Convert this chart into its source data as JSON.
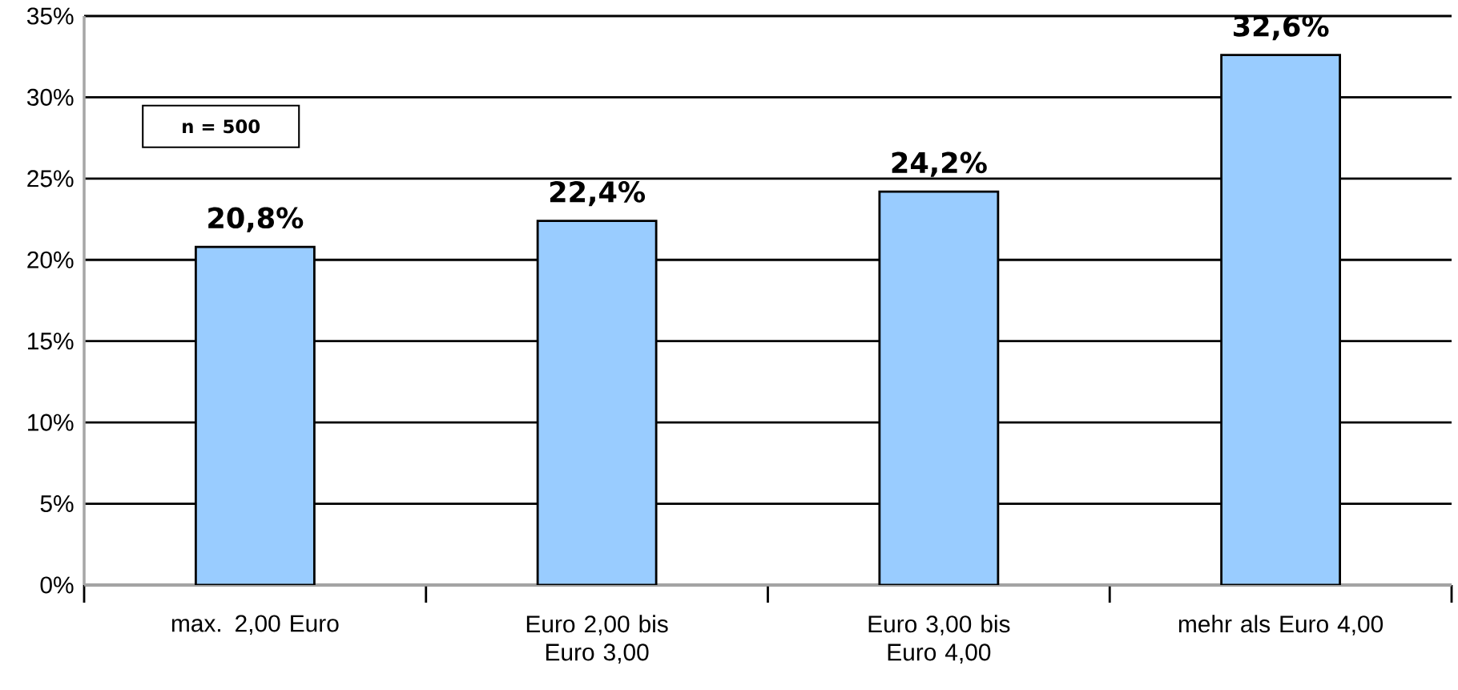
{
  "chart_data": {
    "type": "bar",
    "categories": [
      "max. 2,00 Euro",
      "Euro 2,00 bis Euro 3,00",
      "Euro 3,00 bis Euro 4,00",
      "mehr als Euro 4,00"
    ],
    "values": [
      20.8,
      22.4,
      24.2,
      32.6
    ],
    "value_labels": [
      "20,8%",
      "22,4%",
      "24,2%",
      "32,6%"
    ],
    "color": "#99ccff",
    "ylim": [
      0,
      35
    ],
    "yticks": [
      {
        "value": 0,
        "label": "0%"
      },
      {
        "value": 5,
        "label": "5%"
      },
      {
        "value": 10,
        "label": "10%"
      },
      {
        "value": 15,
        "label": "15%"
      },
      {
        "value": 20,
        "label": "20%"
      },
      {
        "value": 25,
        "label": "25%"
      },
      {
        "value": 30,
        "label": "30%"
      },
      {
        "value": 35,
        "label": "35%"
      }
    ],
    "grid": "y",
    "annotations": [
      "n = 500"
    ]
  }
}
